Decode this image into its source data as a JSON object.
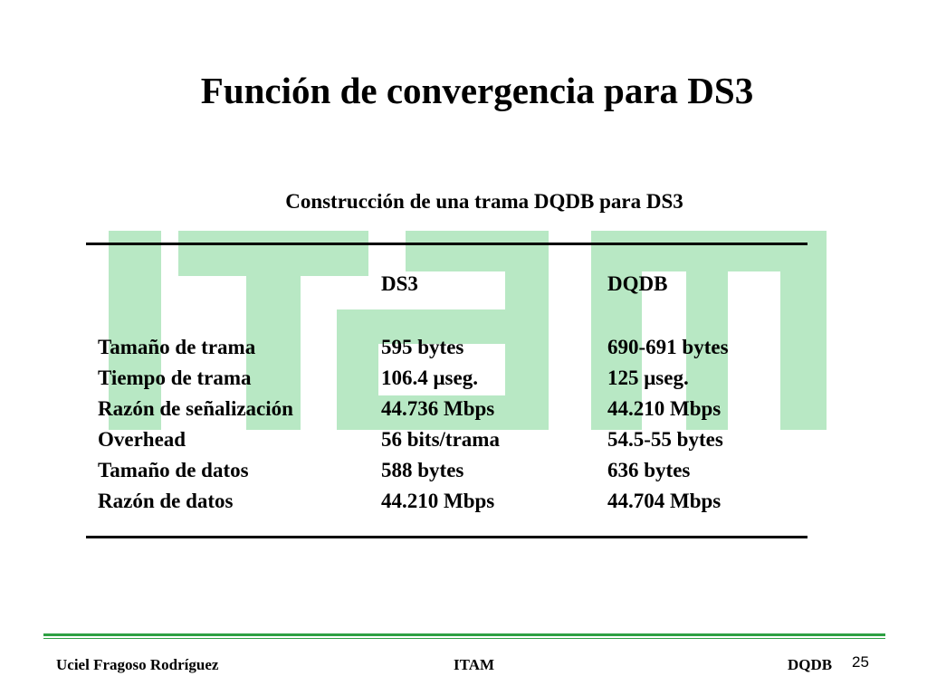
{
  "slide": {
    "title": "Función de convergencia para DS3",
    "table_caption": "Construcción de una trama DQDB para DS3"
  },
  "table": {
    "headers": [
      "",
      "DS3",
      "DQDB"
    ],
    "rows": [
      [
        "Tamaño de trama",
        "595 bytes",
        "690-691 bytes"
      ],
      [
        "Tiempo de trama",
        "106.4 μseg.",
        "125 μseg."
      ],
      [
        "Razón de señalización",
        "44.736 Mbps",
        "44.210 Mbps"
      ],
      [
        "Overhead",
        "56 bits/trama",
        "54.5-55 bytes"
      ],
      [
        "Tamaño de datos",
        "588 bytes",
        "636 bytes"
      ],
      [
        "Razón de datos",
        "44.210 Mbps",
        "44.704 Mbps"
      ]
    ]
  },
  "footer": {
    "author": "Uciel Fragoso Rodríguez",
    "institution": "ITAM",
    "topic": "DQDB",
    "page_number": "25"
  },
  "colors": {
    "watermark": "#b8e8c4",
    "footer_rule": "#2ea043",
    "text": "#000000"
  },
  "watermark": {
    "icon": "itam-logo-watermark"
  }
}
